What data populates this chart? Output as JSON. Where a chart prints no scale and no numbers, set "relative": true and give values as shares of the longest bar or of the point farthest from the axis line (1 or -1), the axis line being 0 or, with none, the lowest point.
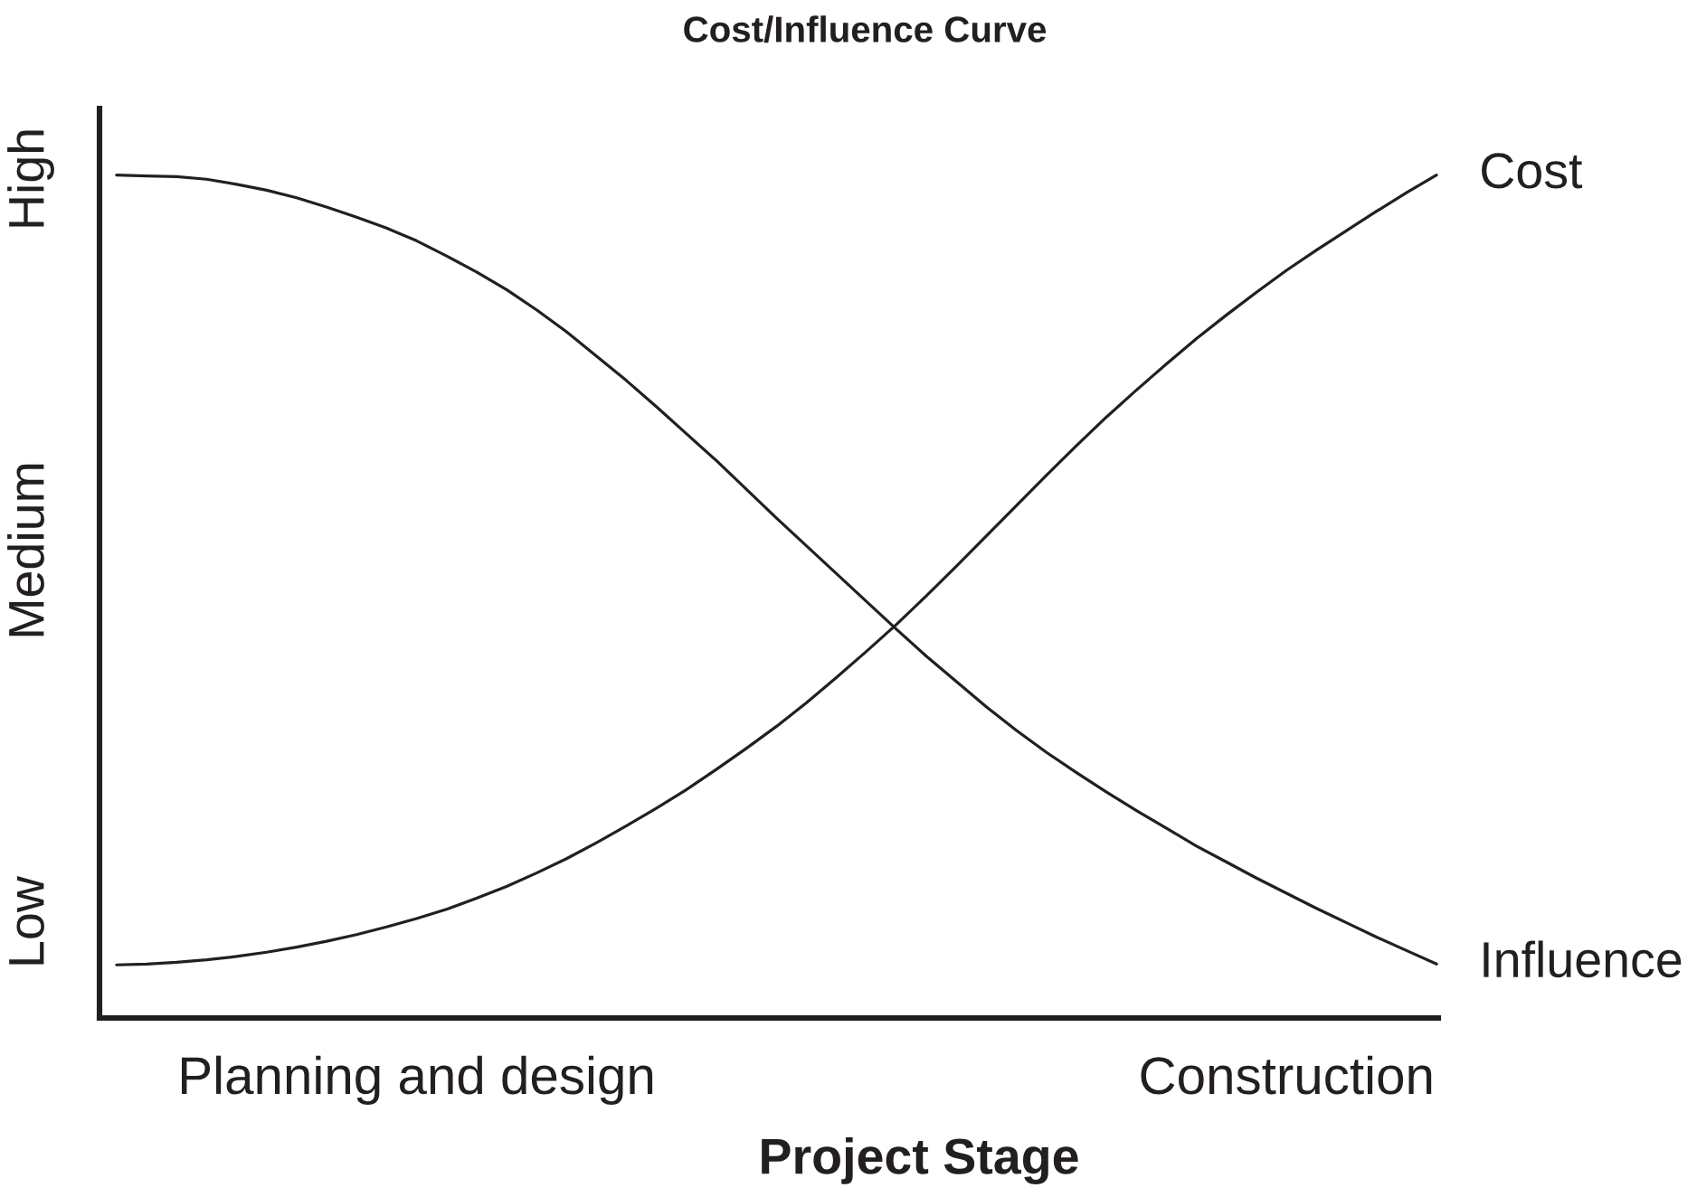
{
  "chart_data": {
    "type": "line",
    "title": "Cost/Influence Curve",
    "xlabel": "Project Stage",
    "relative": true,
    "categories": [
      null,
      null,
      null,
      null,
      null,
      null,
      null,
      null,
      null,
      null,
      "Planning and design",
      null,
      null,
      null,
      null,
      null,
      null,
      null,
      null,
      null,
      null,
      null,
      null,
      null,
      null,
      null,
      null,
      null,
      null,
      null,
      null,
      null,
      null,
      null,
      null,
      null,
      null,
      null,
      null,
      "Construction",
      null,
      null,
      null,
      null,
      null
    ],
    "series": [
      {
        "name": "Cost",
        "color": "#231f20",
        "values": [
          0.063,
          0.064,
          0.066,
          0.069,
          0.073,
          0.078,
          0.084,
          0.091,
          0.099,
          0.108,
          0.118,
          0.129,
          0.142,
          0.156,
          0.172,
          0.189,
          0.208,
          0.228,
          0.249,
          0.271,
          0.295,
          0.32,
          0.346,
          0.374,
          0.404,
          0.435,
          0.467,
          0.501,
          0.536,
          0.572,
          0.608,
          0.644,
          0.679,
          0.713,
          0.745,
          0.776,
          0.806,
          0.834,
          0.861,
          0.887,
          0.911,
          0.934,
          0.957,
          0.979,
          1.0
        ]
      },
      {
        "name": "Influence",
        "color": "#231f20",
        "values": [
          1.0,
          0.999,
          0.998,
          0.995,
          0.989,
          0.982,
          0.973,
          0.962,
          0.95,
          0.937,
          0.922,
          0.904,
          0.885,
          0.864,
          0.84,
          0.814,
          0.785,
          0.756,
          0.725,
          0.693,
          0.661,
          0.627,
          0.593,
          0.56,
          0.527,
          0.494,
          0.461,
          0.429,
          0.399,
          0.369,
          0.341,
          0.315,
          0.291,
          0.268,
          0.246,
          0.225,
          0.204,
          0.185,
          0.166,
          0.148,
          0.13,
          0.113,
          0.096,
          0.08,
          0.064
        ]
      }
    ],
    "annotations": [
      "Low",
      "Medium",
      "High"
    ],
    "line_style": "solid"
  }
}
